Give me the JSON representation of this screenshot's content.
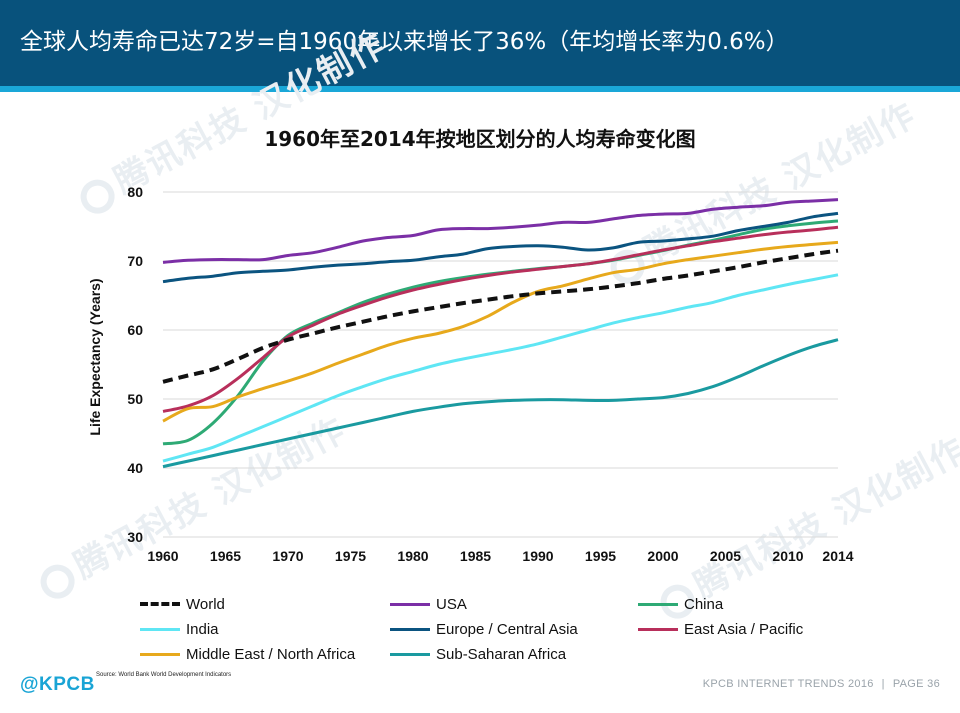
{
  "header": {
    "title": "全球人均寿命已达72岁=自1960年以来增长了36%（年均增长率为0.6%）"
  },
  "watermark_text": "腾讯科技 汉化制作",
  "chart_data": {
    "type": "line",
    "title": "1960年至2014年按地区划分的人均寿命变化图",
    "xlabel": "",
    "ylabel": "Life Expectancy (Years)",
    "xlim": [
      1960,
      2014
    ],
    "ylim": [
      30,
      80
    ],
    "x_ticks": [
      1960,
      1965,
      1970,
      1975,
      1980,
      1985,
      1990,
      1995,
      2000,
      2005,
      2010,
      2014
    ],
    "y_ticks": [
      30,
      40,
      50,
      60,
      70,
      80
    ],
    "grid": "horizontal",
    "legend_position": "bottom",
    "x": [
      1960,
      1962,
      1964,
      1966,
      1968,
      1970,
      1972,
      1974,
      1976,
      1978,
      1980,
      1982,
      1984,
      1986,
      1988,
      1990,
      1992,
      1994,
      1996,
      1998,
      2000,
      2002,
      2004,
      2006,
      2008,
      2010,
      2012,
      2014
    ],
    "series": [
      {
        "name": "World",
        "color": "#111111",
        "dashed": true,
        "values": [
          52.5,
          53.4,
          54.3,
          55.8,
          57.4,
          58.6,
          59.5,
          60.4,
          61.2,
          62.0,
          62.7,
          63.3,
          63.9,
          64.4,
          64.9,
          65.3,
          65.6,
          65.9,
          66.3,
          66.8,
          67.4,
          67.9,
          68.5,
          69.1,
          69.8,
          70.4,
          71.0,
          71.5
        ]
      },
      {
        "name": "USA",
        "color": "#7b2fa6",
        "values": [
          69.8,
          70.1,
          70.2,
          70.2,
          70.2,
          70.8,
          71.2,
          72.0,
          72.9,
          73.4,
          73.7,
          74.5,
          74.7,
          74.7,
          74.9,
          75.2,
          75.6,
          75.6,
          76.1,
          76.6,
          76.8,
          76.9,
          77.5,
          77.8,
          78.0,
          78.5,
          78.7,
          78.9
        ]
      },
      {
        "name": "China",
        "color": "#2eaa75",
        "values": [
          43.5,
          44.0,
          46.5,
          50.5,
          55.5,
          59.2,
          61.0,
          62.5,
          64.0,
          65.2,
          66.2,
          67.0,
          67.6,
          68.1,
          68.5,
          68.9,
          69.2,
          69.6,
          70.1,
          70.8,
          71.5,
          72.3,
          73.0,
          73.8,
          74.6,
          75.1,
          75.5,
          75.8
        ]
      },
      {
        "name": "India",
        "color": "#5fe6f4",
        "values": [
          41.0,
          42.0,
          43.0,
          44.5,
          46.0,
          47.5,
          49.0,
          50.5,
          51.8,
          53.0,
          54.0,
          55.0,
          55.8,
          56.5,
          57.2,
          58.0,
          59.0,
          60.0,
          61.0,
          61.8,
          62.5,
          63.3,
          64.0,
          65.0,
          65.8,
          66.6,
          67.3,
          68.0
        ]
      },
      {
        "name": "Europe / Central Asia",
        "color": "#0b5480",
        "values": [
          67.0,
          67.5,
          67.8,
          68.3,
          68.5,
          68.7,
          69.1,
          69.4,
          69.6,
          69.9,
          70.1,
          70.6,
          71.0,
          71.8,
          72.1,
          72.2,
          72.0,
          71.6,
          71.9,
          72.7,
          72.9,
          73.2,
          73.6,
          74.4,
          75.0,
          75.6,
          76.4,
          76.9
        ]
      },
      {
        "name": "East Asia / Pacific",
        "color": "#b82f5b",
        "values": [
          48.2,
          49.0,
          50.5,
          53.0,
          56.0,
          59.0,
          60.7,
          62.3,
          63.6,
          64.8,
          65.8,
          66.6,
          67.3,
          67.9,
          68.4,
          68.8,
          69.2,
          69.6,
          70.2,
          70.9,
          71.6,
          72.2,
          72.8,
          73.3,
          73.8,
          74.2,
          74.5,
          74.9
        ]
      },
      {
        "name": "Middle East / North Africa",
        "color": "#e7a91c",
        "values": [
          46.8,
          48.6,
          48.9,
          50.3,
          51.5,
          52.6,
          53.8,
          55.2,
          56.5,
          57.8,
          58.8,
          59.5,
          60.5,
          62.0,
          64.0,
          65.6,
          66.4,
          67.4,
          68.3,
          68.8,
          69.6,
          70.2,
          70.7,
          71.2,
          71.7,
          72.1,
          72.4,
          72.7
        ]
      },
      {
        "name": "Sub-Saharan Africa",
        "color": "#1a9aa0",
        "values": [
          40.2,
          41.0,
          41.8,
          42.6,
          43.4,
          44.2,
          45.0,
          45.8,
          46.6,
          47.4,
          48.2,
          48.8,
          49.3,
          49.6,
          49.8,
          49.9,
          49.9,
          49.8,
          49.8,
          50.0,
          50.2,
          50.8,
          51.8,
          53.2,
          54.8,
          56.3,
          57.6,
          58.6
        ]
      }
    ]
  },
  "source": "Source: World Bank World Development Indicators",
  "footer": {
    "logo": "@KPCB",
    "report": "KPCB INTERNET TRENDS 2016",
    "separator": "|",
    "page": "PAGE 36"
  }
}
